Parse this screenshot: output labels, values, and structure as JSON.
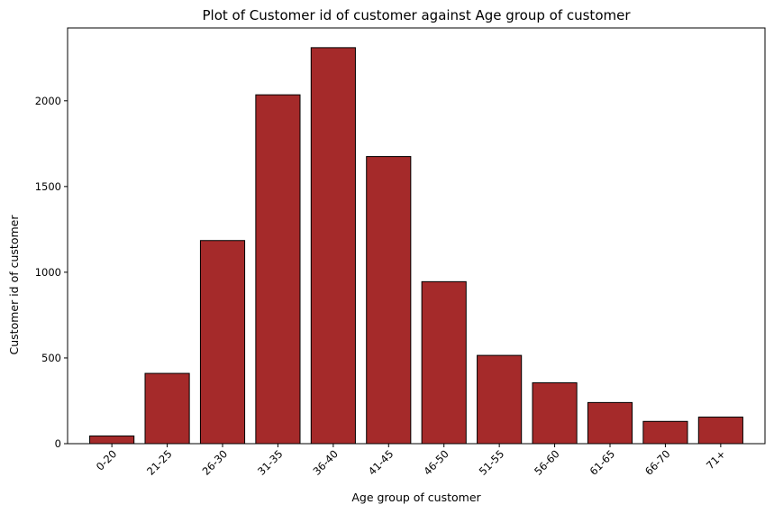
{
  "chart_data": {
    "type": "bar",
    "title": "Plot of Customer id of customer against Age group of customer",
    "xlabel": "Age group of customer",
    "ylabel": "Customer id of customer",
    "categories": [
      "0-20",
      "21-25",
      "26-30",
      "31-35",
      "36-40",
      "41-45",
      "46-50",
      "51-55",
      "56-60",
      "61-65",
      "66-70",
      "71+"
    ],
    "values": [
      45,
      410,
      1185,
      2035,
      2310,
      1675,
      945,
      515,
      355,
      240,
      130,
      155
    ],
    "ylim": [
      0,
      2425
    ],
    "yticks": [
      0,
      500,
      1000,
      1500,
      2000
    ],
    "grid": false,
    "bar_color": "#a52a2a",
    "edge_color": "#000000",
    "xtick_rotation": 45
  }
}
